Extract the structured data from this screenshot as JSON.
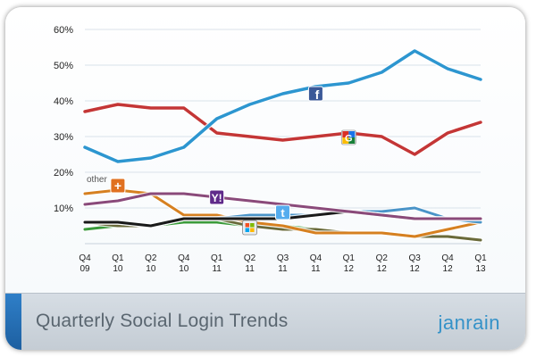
{
  "footer": {
    "title": "Quarterly Social Login Trends",
    "brand": "janrain"
  },
  "colors": {
    "facebook": "#2d96d0",
    "google": "#c43636",
    "yahoo": "#8a4a7a",
    "twitter": "#4a94c8",
    "microsoft": "#6a6a3a",
    "other": "#d68020",
    "aol": "#3a9a3a",
    "linkedin": "#1a1a1a",
    "footer_accent": "#2f7fc8",
    "brand": "#3592c8"
  },
  "chart_data": {
    "type": "line",
    "categories": [
      [
        "Q4",
        "09"
      ],
      [
        "Q1",
        "10"
      ],
      [
        "Q2",
        "10"
      ],
      [
        "Q4",
        "10"
      ],
      [
        "Q1",
        "11"
      ],
      [
        "Q2",
        "11"
      ],
      [
        "Q3",
        "11"
      ],
      [
        "Q4",
        "11"
      ],
      [
        "Q1",
        "12"
      ],
      [
        "Q2",
        "12"
      ],
      [
        "Q3",
        "12"
      ],
      [
        "Q4",
        "12"
      ],
      [
        "Q1",
        "13"
      ]
    ],
    "ylim": [
      0,
      60
    ],
    "yticks": [
      "10%",
      "20%",
      "30%",
      "40%",
      "50%",
      "60%"
    ],
    "ytick_values": [
      10,
      20,
      30,
      40,
      50,
      60
    ],
    "series": [
      {
        "key": "facebook",
        "icon": "facebook-icon",
        "values": [
          27,
          23,
          24,
          27,
          35,
          39,
          42,
          44,
          45,
          48,
          54,
          49,
          46
        ]
      },
      {
        "key": "google",
        "icon": "google-icon",
        "values": [
          37,
          39,
          38,
          38,
          31,
          30,
          29,
          30,
          31,
          30,
          25,
          31,
          34
        ]
      },
      {
        "key": "yahoo",
        "icon": "yahoo-icon",
        "values": [
          11,
          12,
          14,
          14,
          13,
          12,
          11,
          10,
          9,
          8,
          7,
          7,
          7
        ]
      },
      {
        "key": "other",
        "name": "other",
        "icon": "other-icon",
        "values": [
          14,
          15,
          14,
          8,
          8,
          6,
          5,
          3,
          3,
          3,
          2,
          4,
          6
        ]
      },
      {
        "key": "twitter",
        "icon": "twitter-icon",
        "values": [
          6,
          6,
          5,
          7,
          7,
          8,
          8,
          8,
          9,
          9,
          10,
          7,
          6
        ]
      },
      {
        "key": "microsoft",
        "icon": "windows-icon",
        "values": [
          6,
          5,
          5,
          7,
          7,
          5,
          4,
          4,
          3,
          3,
          2,
          2,
          1
        ]
      },
      {
        "key": "aol",
        "values": [
          4,
          5,
          5,
          6,
          6,
          5,
          5,
          4,
          3,
          3,
          2,
          2,
          1
        ]
      },
      {
        "key": "linkedin",
        "values": [
          6,
          6,
          5,
          7,
          7,
          7,
          7,
          8,
          9,
          8,
          7,
          7,
          7
        ]
      }
    ],
    "annotations": [
      {
        "text": "other"
      }
    ]
  }
}
